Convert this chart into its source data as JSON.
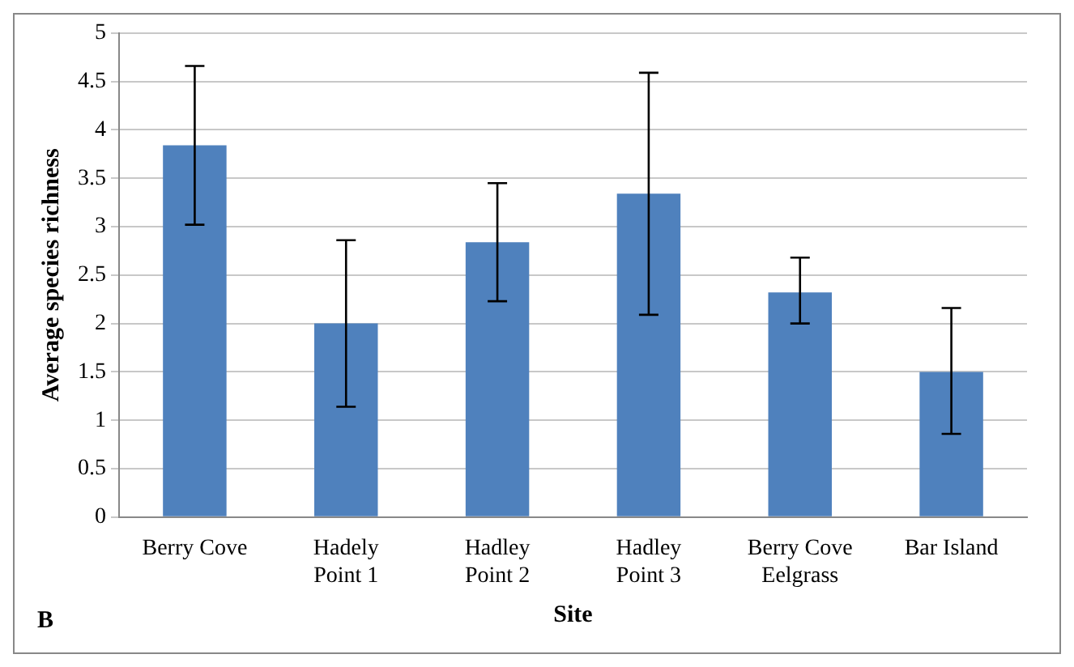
{
  "chart_data": {
    "type": "bar",
    "xlabel": "Site",
    "ylabel": "Average species richness",
    "categories": [
      "Berry Cove",
      "Hadely Point 1",
      "Hadley Point 2",
      "Hadley Point 3",
      "Berry Cove Eelgrass",
      "Bar Island"
    ],
    "values": [
      3.84,
      2.0,
      2.84,
      3.34,
      2.32,
      1.5
    ],
    "errors": [
      [
        3.02,
        4.66
      ],
      [
        1.14,
        2.86
      ],
      [
        2.23,
        3.45
      ],
      [
        2.09,
        4.59
      ],
      [
        2.0,
        2.68
      ],
      [
        0.86,
        2.16
      ]
    ],
    "color": "#4f81bd",
    "ylim": [
      0,
      5
    ],
    "yticks": [
      0,
      0.5,
      1,
      1.5,
      2,
      2.5,
      3,
      3.5,
      4,
      4.5,
      5
    ],
    "grid": "y",
    "legend": false,
    "annotations": [
      "B"
    ]
  }
}
